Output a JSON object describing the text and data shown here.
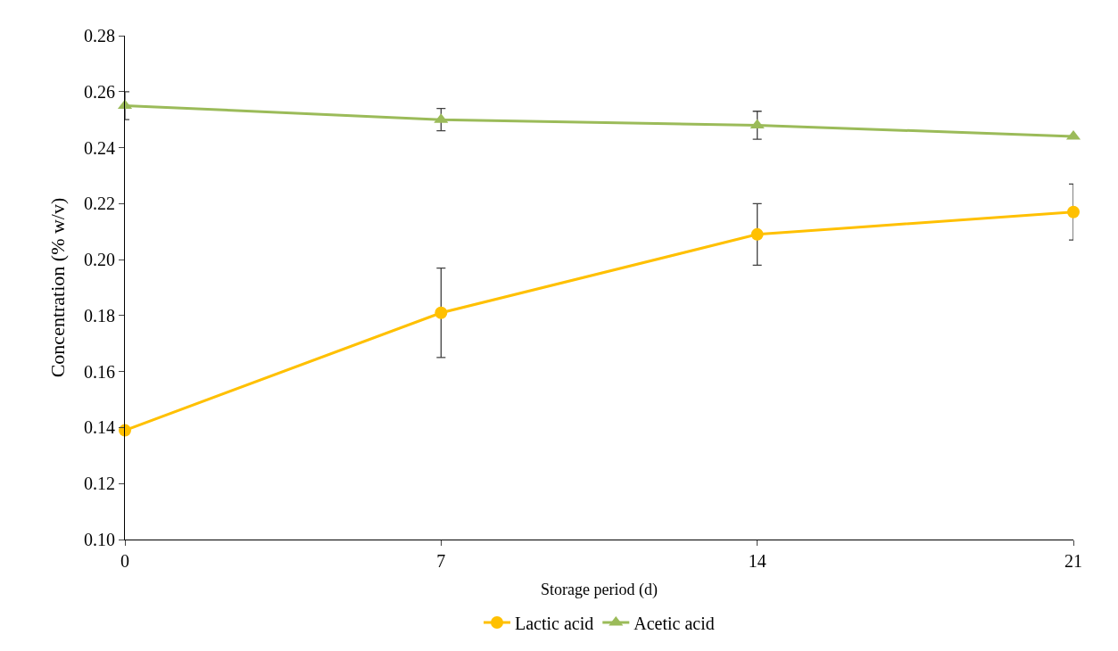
{
  "chart_data": {
    "type": "line",
    "xlabel": "Storage period (d)",
    "ylabel": "Concentration (% w/v)",
    "categories": [
      "0",
      "7",
      "14",
      "21"
    ],
    "series": [
      {
        "name": "Lactic acid",
        "color": "#ffc000",
        "marker": "circle",
        "values": [
          0.139,
          0.181,
          0.209,
          0.217
        ],
        "errors": [
          null,
          0.016,
          0.011,
          0.01
        ]
      },
      {
        "name": "Acetic acid",
        "color": "#9bbb59",
        "marker": "triangle",
        "values": [
          0.255,
          0.25,
          0.248,
          0.244
        ],
        "errors": [
          0.005,
          0.004,
          0.005,
          null
        ]
      }
    ],
    "ylim": [
      0.1,
      0.28
    ],
    "yticks": [
      {
        "value": 0.1,
        "label": "0.10"
      },
      {
        "value": 0.12,
        "label": "0.12"
      },
      {
        "value": 0.14,
        "label": "0.14"
      },
      {
        "value": 0.16,
        "label": "0.16"
      },
      {
        "value": 0.18,
        "label": "0.18"
      },
      {
        "value": 0.2,
        "label": "0.20"
      },
      {
        "value": 0.22,
        "label": "0.22"
      },
      {
        "value": 0.24,
        "label": "0.24"
      },
      {
        "value": 0.26,
        "label": "0.26"
      },
      {
        "value": 0.28,
        "label": "0.28"
      }
    ],
    "legend": "bottom",
    "line_style": "solid"
  }
}
